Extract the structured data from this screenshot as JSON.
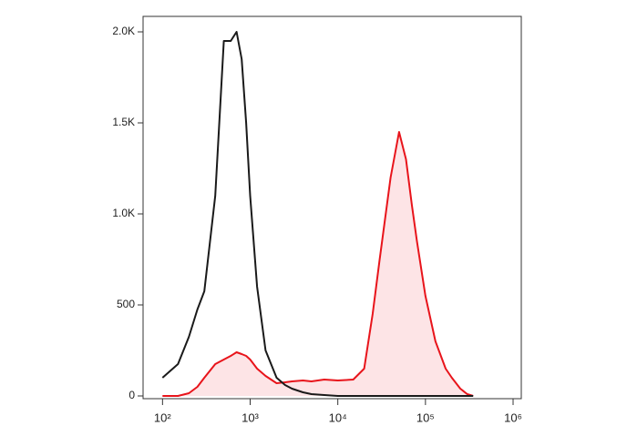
{
  "chart_data": {
    "type": "histogram-overlay",
    "x": [
      100,
      150,
      200,
      250,
      300,
      400,
      500,
      600,
      700,
      800,
      900,
      1000,
      1200,
      1500,
      2000,
      2500,
      3000,
      4000,
      5000,
      7000,
      10000,
      15000,
      20000,
      25000,
      30000,
      40000,
      50000,
      60000,
      70000,
      80000,
      100000,
      130000,
      170000,
      200000,
      250000,
      300000,
      350000
    ],
    "series": [
      {
        "color": "#1a1a1a",
        "fill": false,
        "values": [
          100,
          175,
          325,
          475,
          575,
          1100,
          1950,
          1950,
          2000,
          1850,
          1500,
          1100,
          600,
          250,
          100,
          60,
          40,
          20,
          10,
          5,
          0,
          0,
          0,
          0,
          0,
          0,
          0,
          0,
          0,
          0,
          0,
          0,
          0,
          0,
          0,
          0,
          0
        ]
      },
      {
        "color": "#e8141b",
        "fill": true,
        "fill_color": "#fde4e6",
        "values": [
          0,
          0,
          15,
          50,
          100,
          175,
          200,
          220,
          240,
          230,
          220,
          200,
          150,
          110,
          70,
          75,
          80,
          85,
          80,
          90,
          85,
          90,
          150,
          450,
          750,
          1200,
          1450,
          1300,
          1050,
          850,
          550,
          300,
          150,
          100,
          40,
          10,
          0
        ]
      }
    ],
    "xscale": "log",
    "xlim": [
      60,
      1240000
    ],
    "xticks": [
      {
        "value": 100,
        "label": "10²"
      },
      {
        "value": 1000,
        "label": "10³"
      },
      {
        "value": 10000,
        "label": "10⁴"
      },
      {
        "value": 100000,
        "label": "10⁵"
      },
      {
        "value": 1000000,
        "label": "10⁶"
      }
    ],
    "ylim": [
      -15,
      2085
    ],
    "yticks": [
      0,
      500,
      {
        "value": 1000,
        "label": "1.0K"
      },
      {
        "value": 1500,
        "label": "1.5K"
      },
      {
        "value": 2000,
        "label": "2.0K"
      }
    ]
  }
}
